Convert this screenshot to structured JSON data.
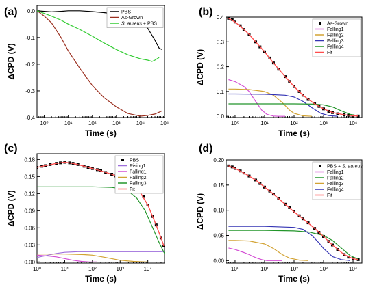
{
  "colors": {
    "pbs": "#000000",
    "as_grown": "#9b2f1f",
    "s_aureus": "#33cc33",
    "rising1": "#9f6fdc",
    "falling1": "#d44fd4",
    "falling2": "#d2a232",
    "falling3": "#3434b4",
    "falling4": "#22952a",
    "fit": "#ff4d4d",
    "data_marker": "#000000"
  },
  "chart_data": [
    {
      "type": "line",
      "panel_label": "(a)",
      "xlabel": "Time (s)",
      "ylabel": "ΔCPD (V)",
      "xscale": "log",
      "xlim": [
        0.5,
        100000
      ],
      "ylim": [
        -0.4,
        0.02
      ],
      "xticks": [
        1,
        10,
        100,
        1000,
        10000,
        100000
      ],
      "xticklabels": [
        "10⁰",
        "10¹",
        "10²",
        "10³",
        "10⁴",
        "10⁵"
      ],
      "yticks": [
        0.0,
        -0.1,
        -0.2,
        -0.3,
        -0.4
      ],
      "yticklabels": [
        "0.0",
        "-0.1",
        "-0.2",
        "-0.3",
        "-0.4"
      ],
      "legend_position": "top-right",
      "series": [
        {
          "name": "PBS",
          "color_key": "pbs",
          "style": "line",
          "x": [
            0.5,
            1,
            2,
            5,
            10,
            30,
            100,
            300,
            1000,
            3000,
            10000,
            20000,
            40000,
            60000,
            80000
          ],
          "y": [
            0.0,
            -0.002,
            -0.004,
            -0.002,
            0.0,
            0.0,
            -0.003,
            -0.007,
            -0.012,
            -0.02,
            -0.04,
            -0.065,
            -0.11,
            -0.14,
            -0.145
          ]
        },
        {
          "name": "As-Grown",
          "color_key": "as_grown",
          "style": "line",
          "x": [
            0.5,
            1,
            2,
            5,
            10,
            30,
            100,
            300,
            1000,
            3000,
            10000,
            20000,
            40000,
            60000,
            80000
          ],
          "y": [
            0.0,
            -0.02,
            -0.045,
            -0.1,
            -0.15,
            -0.215,
            -0.28,
            -0.325,
            -0.36,
            -0.385,
            -0.395,
            -0.392,
            -0.387,
            -0.38,
            -0.375
          ]
        },
        {
          "name": "S. aureus + PBS",
          "color_key": "s_aureus",
          "style": "line",
          "x": [
            0.5,
            1,
            2,
            5,
            10,
            30,
            100,
            300,
            1000,
            3000,
            10000,
            20000,
            30000,
            40000,
            60000
          ],
          "y": [
            0.0,
            -0.01,
            -0.02,
            -0.035,
            -0.05,
            -0.07,
            -0.095,
            -0.12,
            -0.145,
            -0.165,
            -0.18,
            -0.185,
            -0.19,
            -0.185,
            -0.175
          ]
        }
      ]
    },
    {
      "type": "line",
      "panel_label": "(b)",
      "xlabel": "Time (s)",
      "ylabel": "ΔCPD (V)",
      "xscale": "log",
      "xlim": [
        0.5,
        20000
      ],
      "ylim": [
        -0.005,
        0.4
      ],
      "xticks": [
        1,
        10,
        100,
        1000,
        10000
      ],
      "xticklabels": [
        "10⁰",
        "10¹",
        "10²",
        "10³",
        "10⁴"
      ],
      "yticks": [
        0.0,
        0.1,
        0.2,
        0.3,
        0.4
      ],
      "yticklabels": [
        "0.0",
        "0.1",
        "0.2",
        "0.3",
        "0.4"
      ],
      "legend_position": "top-right",
      "series": [
        {
          "name": "As-Grown",
          "color_key": "data_marker",
          "style": "markers",
          "x": [
            0.6,
            0.8,
            1,
            1.5,
            2,
            3,
            5,
            7,
            10,
            15,
            20,
            30,
            50,
            70,
            100,
            150,
            200,
            300,
            500,
            700,
            1000,
            1500,
            2000,
            3000,
            5000,
            7000,
            10000,
            15000
          ],
          "y": [
            0.395,
            0.39,
            0.38,
            0.365,
            0.35,
            0.33,
            0.3,
            0.28,
            0.26,
            0.235,
            0.215,
            0.19,
            0.16,
            0.14,
            0.12,
            0.1,
            0.085,
            0.068,
            0.05,
            0.04,
            0.03,
            0.02,
            0.015,
            0.01,
            0.006,
            0.004,
            0.002,
            0.001
          ]
        },
        {
          "name": "Falling1",
          "color_key": "falling1",
          "style": "line",
          "x": [
            0.6,
            1,
            2,
            3,
            5,
            8,
            12,
            20,
            30,
            50
          ],
          "y": [
            0.148,
            0.14,
            0.12,
            0.1,
            0.06,
            0.025,
            0.008,
            0.001,
            0.0,
            0.0
          ]
        },
        {
          "name": "Falling2",
          "color_key": "falling2",
          "style": "line",
          "x": [
            0.6,
            1,
            3,
            10,
            20,
            40,
            70,
            100,
            200,
            400
          ],
          "y": [
            0.11,
            0.11,
            0.108,
            0.1,
            0.085,
            0.055,
            0.025,
            0.012,
            0.002,
            0.0
          ]
        },
        {
          "name": "Falling3",
          "color_key": "falling3",
          "style": "line",
          "x": [
            0.6,
            1,
            10,
            50,
            100,
            200,
            400,
            800,
            1500,
            3000
          ],
          "y": [
            0.09,
            0.09,
            0.089,
            0.085,
            0.078,
            0.06,
            0.035,
            0.012,
            0.003,
            0.0
          ]
        },
        {
          "name": "Falling4",
          "color_key": "falling4",
          "style": "line",
          "x": [
            0.6,
            100,
            500,
            1000,
            2000,
            4000,
            8000,
            15000
          ],
          "y": [
            0.05,
            0.05,
            0.049,
            0.046,
            0.038,
            0.022,
            0.008,
            0.002
          ]
        },
        {
          "name": "Fit",
          "color_key": "fit",
          "style": "line",
          "x": [
            0.6,
            1,
            2,
            3,
            5,
            10,
            20,
            50,
            100,
            200,
            500,
            1000,
            2000,
            5000,
            10000,
            15000
          ],
          "y": [
            0.395,
            0.38,
            0.35,
            0.33,
            0.3,
            0.26,
            0.215,
            0.16,
            0.12,
            0.085,
            0.05,
            0.03,
            0.015,
            0.006,
            0.002,
            0.001
          ]
        }
      ]
    },
    {
      "type": "line",
      "panel_label": "(c)",
      "xlabel": "Time (s)",
      "ylabel": "ΔCPD (V)",
      "xscale": "log",
      "xlim": [
        1,
        40000
      ],
      "ylim": [
        -0.002,
        0.19
      ],
      "xticks": [
        1,
        10,
        100,
        1000,
        10000
      ],
      "xticklabels": [
        "10⁰",
        "10¹",
        "10²",
        "10³",
        "10⁴"
      ],
      "yticks": [
        0.0,
        0.03,
        0.06,
        0.09,
        0.12,
        0.15,
        0.18
      ],
      "yticklabels": [
        "0.00",
        "0.03",
        "0.06",
        "0.09",
        "0.12",
        "0.15",
        "0.18"
      ],
      "legend_position": "top-right",
      "series": [
        {
          "name": "PBS",
          "color_key": "data_marker",
          "style": "markers",
          "x": [
            1,
            1.5,
            2,
            3,
            5,
            7,
            10,
            15,
            20,
            30,
            50,
            70,
            100,
            150,
            200,
            300,
            500,
            700,
            1000,
            1500,
            2000,
            3000,
            5000,
            7000,
            10000,
            15000,
            20000,
            30000,
            38000
          ],
          "y": [
            0.166,
            0.168,
            0.169,
            0.171,
            0.173,
            0.174,
            0.175,
            0.174,
            0.173,
            0.171,
            0.168,
            0.166,
            0.164,
            0.162,
            0.16,
            0.157,
            0.154,
            0.151,
            0.148,
            0.144,
            0.14,
            0.134,
            0.124,
            0.115,
            0.1,
            0.08,
            0.065,
            0.042,
            0.028
          ]
        },
        {
          "name": "Rising1",
          "color_key": "rising1",
          "style": "line",
          "x": [
            1,
            2,
            5,
            10,
            30,
            100,
            1000,
            10000,
            40000
          ],
          "y": [
            0.008,
            0.011,
            0.015,
            0.017,
            0.018,
            0.018,
            0.018,
            0.018,
            0.018
          ]
        },
        {
          "name": "Falling1",
          "color_key": "falling1",
          "style": "line",
          "x": [
            1,
            2,
            5,
            10,
            20,
            40,
            80,
            150
          ],
          "y": [
            0.012,
            0.011,
            0.009,
            0.006,
            0.003,
            0.001,
            0.0,
            0.0
          ]
        },
        {
          "name": "Falling2",
          "color_key": "falling2",
          "style": "line",
          "x": [
            1,
            10,
            50,
            100,
            300,
            1000,
            3000,
            10000
          ],
          "y": [
            0.014,
            0.014,
            0.013,
            0.012,
            0.008,
            0.003,
            0.001,
            0.0
          ]
        },
        {
          "name": "Falling3",
          "color_key": "falling4",
          "style": "line",
          "x": [
            1,
            10,
            100,
            500,
            1000,
            2000,
            4000,
            8000,
            15000,
            25000,
            40000
          ],
          "y": [
            0.132,
            0.132,
            0.132,
            0.131,
            0.129,
            0.124,
            0.112,
            0.09,
            0.06,
            0.035,
            0.015
          ]
        },
        {
          "name": "Fit",
          "color_key": "fit",
          "style": "line",
          "x": [
            1,
            2,
            5,
            10,
            20,
            50,
            100,
            200,
            500,
            1000,
            2000,
            5000,
            10000,
            20000,
            30000,
            38000
          ],
          "y": [
            0.166,
            0.169,
            0.173,
            0.175,
            0.173,
            0.168,
            0.164,
            0.16,
            0.154,
            0.148,
            0.14,
            0.124,
            0.1,
            0.065,
            0.042,
            0.028
          ]
        }
      ]
    },
    {
      "type": "line",
      "panel_label": "(d)",
      "xlabel": "Time (s)",
      "ylabel": "ΔCPD (V)",
      "xscale": "log",
      "xlim": [
        0.5,
        20000
      ],
      "ylim": [
        -0.005,
        0.2
      ],
      "xticks": [
        1,
        10,
        100,
        1000,
        10000
      ],
      "xticklabels": [
        "10⁰",
        "10¹",
        "10²",
        "10³",
        "10⁴"
      ],
      "yticks": [
        0.0,
        0.05,
        0.1,
        0.15,
        0.2
      ],
      "yticklabels": [
        "0.00",
        "0.05",
        "0.10",
        "0.15",
        "0.20"
      ],
      "legend_position": "top-right",
      "series": [
        {
          "name": "PBS + S. aureus",
          "color_key": "data_marker",
          "style": "markers",
          "x": [
            0.6,
            0.8,
            1,
            1.5,
            2,
            3,
            5,
            7,
            10,
            15,
            20,
            30,
            50,
            70,
            100,
            150,
            200,
            300,
            500,
            700,
            1000,
            1500,
            2000,
            3000,
            5000,
            7000,
            10000,
            15000
          ],
          "y": [
            0.188,
            0.186,
            0.183,
            0.178,
            0.174,
            0.168,
            0.16,
            0.153,
            0.146,
            0.138,
            0.132,
            0.123,
            0.112,
            0.105,
            0.097,
            0.089,
            0.083,
            0.075,
            0.064,
            0.056,
            0.048,
            0.038,
            0.031,
            0.022,
            0.012,
            0.007,
            0.004,
            0.002
          ]
        },
        {
          "name": "Falling1",
          "color_key": "falling1",
          "style": "line",
          "x": [
            0.6,
            1,
            2,
            3,
            5,
            8,
            12,
            20,
            40
          ],
          "y": [
            0.025,
            0.022,
            0.016,
            0.012,
            0.006,
            0.002,
            0.0,
            0.0,
            0.0
          ]
        },
        {
          "name": "Falling2",
          "color_key": "falling4",
          "style": "line",
          "x": [
            0.6,
            10,
            100,
            300,
            1000,
            2000,
            4000,
            8000,
            15000
          ],
          "y": [
            0.06,
            0.06,
            0.059,
            0.057,
            0.05,
            0.04,
            0.025,
            0.01,
            0.003
          ]
        },
        {
          "name": "Falling3",
          "color_key": "falling2",
          "style": "line",
          "x": [
            0.6,
            1,
            3,
            10,
            20,
            40,
            70,
            150,
            300
          ],
          "y": [
            0.04,
            0.04,
            0.039,
            0.033,
            0.024,
            0.012,
            0.005,
            0.001,
            0.0
          ]
        },
        {
          "name": "Falling4",
          "color_key": "falling3",
          "style": "line",
          "x": [
            0.6,
            10,
            100,
            200,
            400,
            700,
            1000,
            2000,
            4000,
            8000
          ],
          "y": [
            0.068,
            0.068,
            0.066,
            0.062,
            0.05,
            0.035,
            0.024,
            0.008,
            0.002,
            0.0
          ]
        },
        {
          "name": "Fit",
          "color_key": "fit",
          "style": "line",
          "x": [
            0.6,
            1,
            2,
            5,
            10,
            20,
            50,
            100,
            200,
            500,
            1000,
            2000,
            5000,
            10000,
            15000
          ],
          "y": [
            0.188,
            0.183,
            0.174,
            0.16,
            0.146,
            0.132,
            0.112,
            0.097,
            0.083,
            0.064,
            0.048,
            0.031,
            0.012,
            0.004,
            0.002
          ]
        }
      ]
    }
  ]
}
